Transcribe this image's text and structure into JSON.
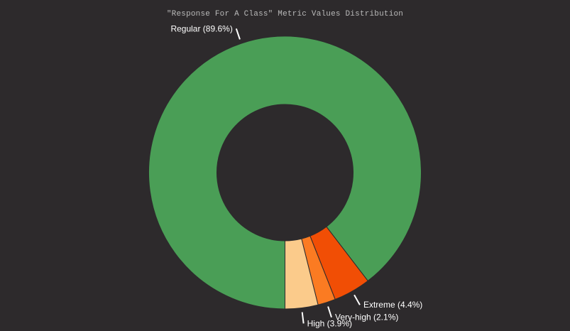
{
  "chart_data": {
    "type": "pie",
    "variant": "donut",
    "title": "\"Response For A Class\" Metric Values Distribution",
    "slices": [
      {
        "name": "Regular",
        "value": 89.6,
        "label": "Regular (89.6%)",
        "color": "#4a9e56"
      },
      {
        "name": "Extreme",
        "value": 4.4,
        "label": "Extreme (4.4%)",
        "color": "#f14e05"
      },
      {
        "name": "Very-high",
        "value": 2.1,
        "label": "Very-high (2.1%)",
        "color": "#fb7b22"
      },
      {
        "name": "High",
        "value": 3.9,
        "label": "High (3.9%)",
        "color": "#fbcb8b"
      }
    ],
    "legend": "none",
    "background": "#2d2a2c",
    "label_color": "#ffffff",
    "title_color": "#b9b9b9"
  }
}
